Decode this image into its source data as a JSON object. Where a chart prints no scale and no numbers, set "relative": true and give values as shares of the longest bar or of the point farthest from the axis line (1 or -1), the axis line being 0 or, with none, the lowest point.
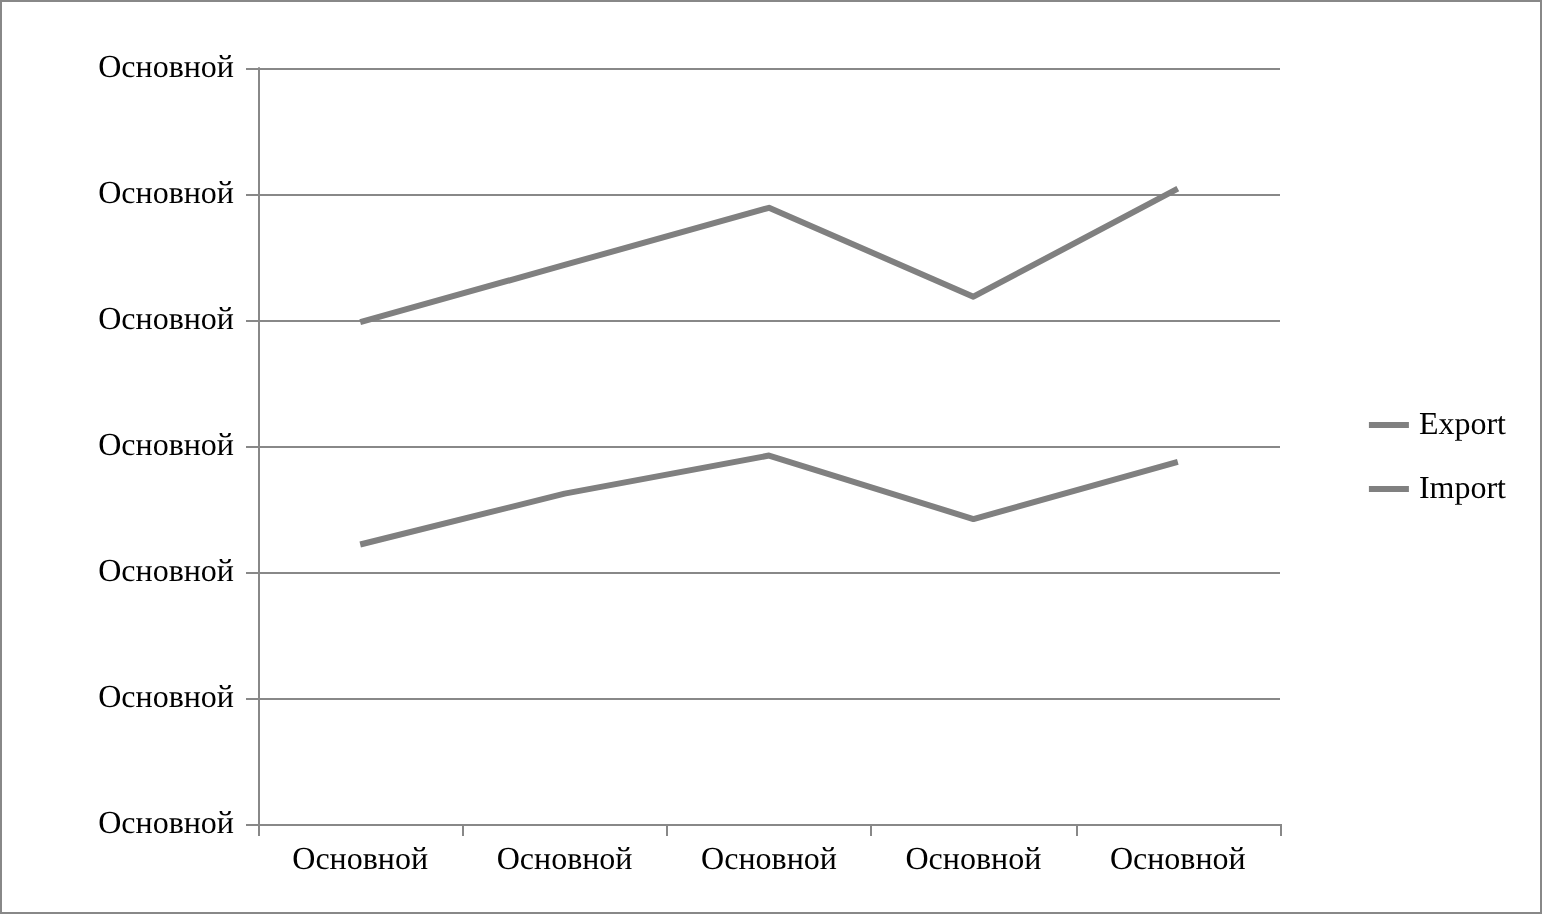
{
  "chart_data": {
    "type": "line",
    "relative": true,
    "categories": [
      "Основной",
      "Основной",
      "Основной",
      "Основной",
      "Основной"
    ],
    "series": [
      {
        "name": "Export",
        "color": "#808080",
        "values": [
          0.79,
          0.88,
          0.97,
          0.83,
          1
        ]
      },
      {
        "name": "Import",
        "color": "#808080",
        "values": [
          0.44,
          0.52,
          0.58,
          0.48,
          0.57
        ]
      }
    ],
    "annotations": [
      "Основной",
      "Основной",
      "Основной",
      "Основной",
      "Основной",
      "Основной",
      "Основной"
    ],
    "grid": "y",
    "legend": "right",
    "marker": "none",
    "line_style": "solid"
  }
}
